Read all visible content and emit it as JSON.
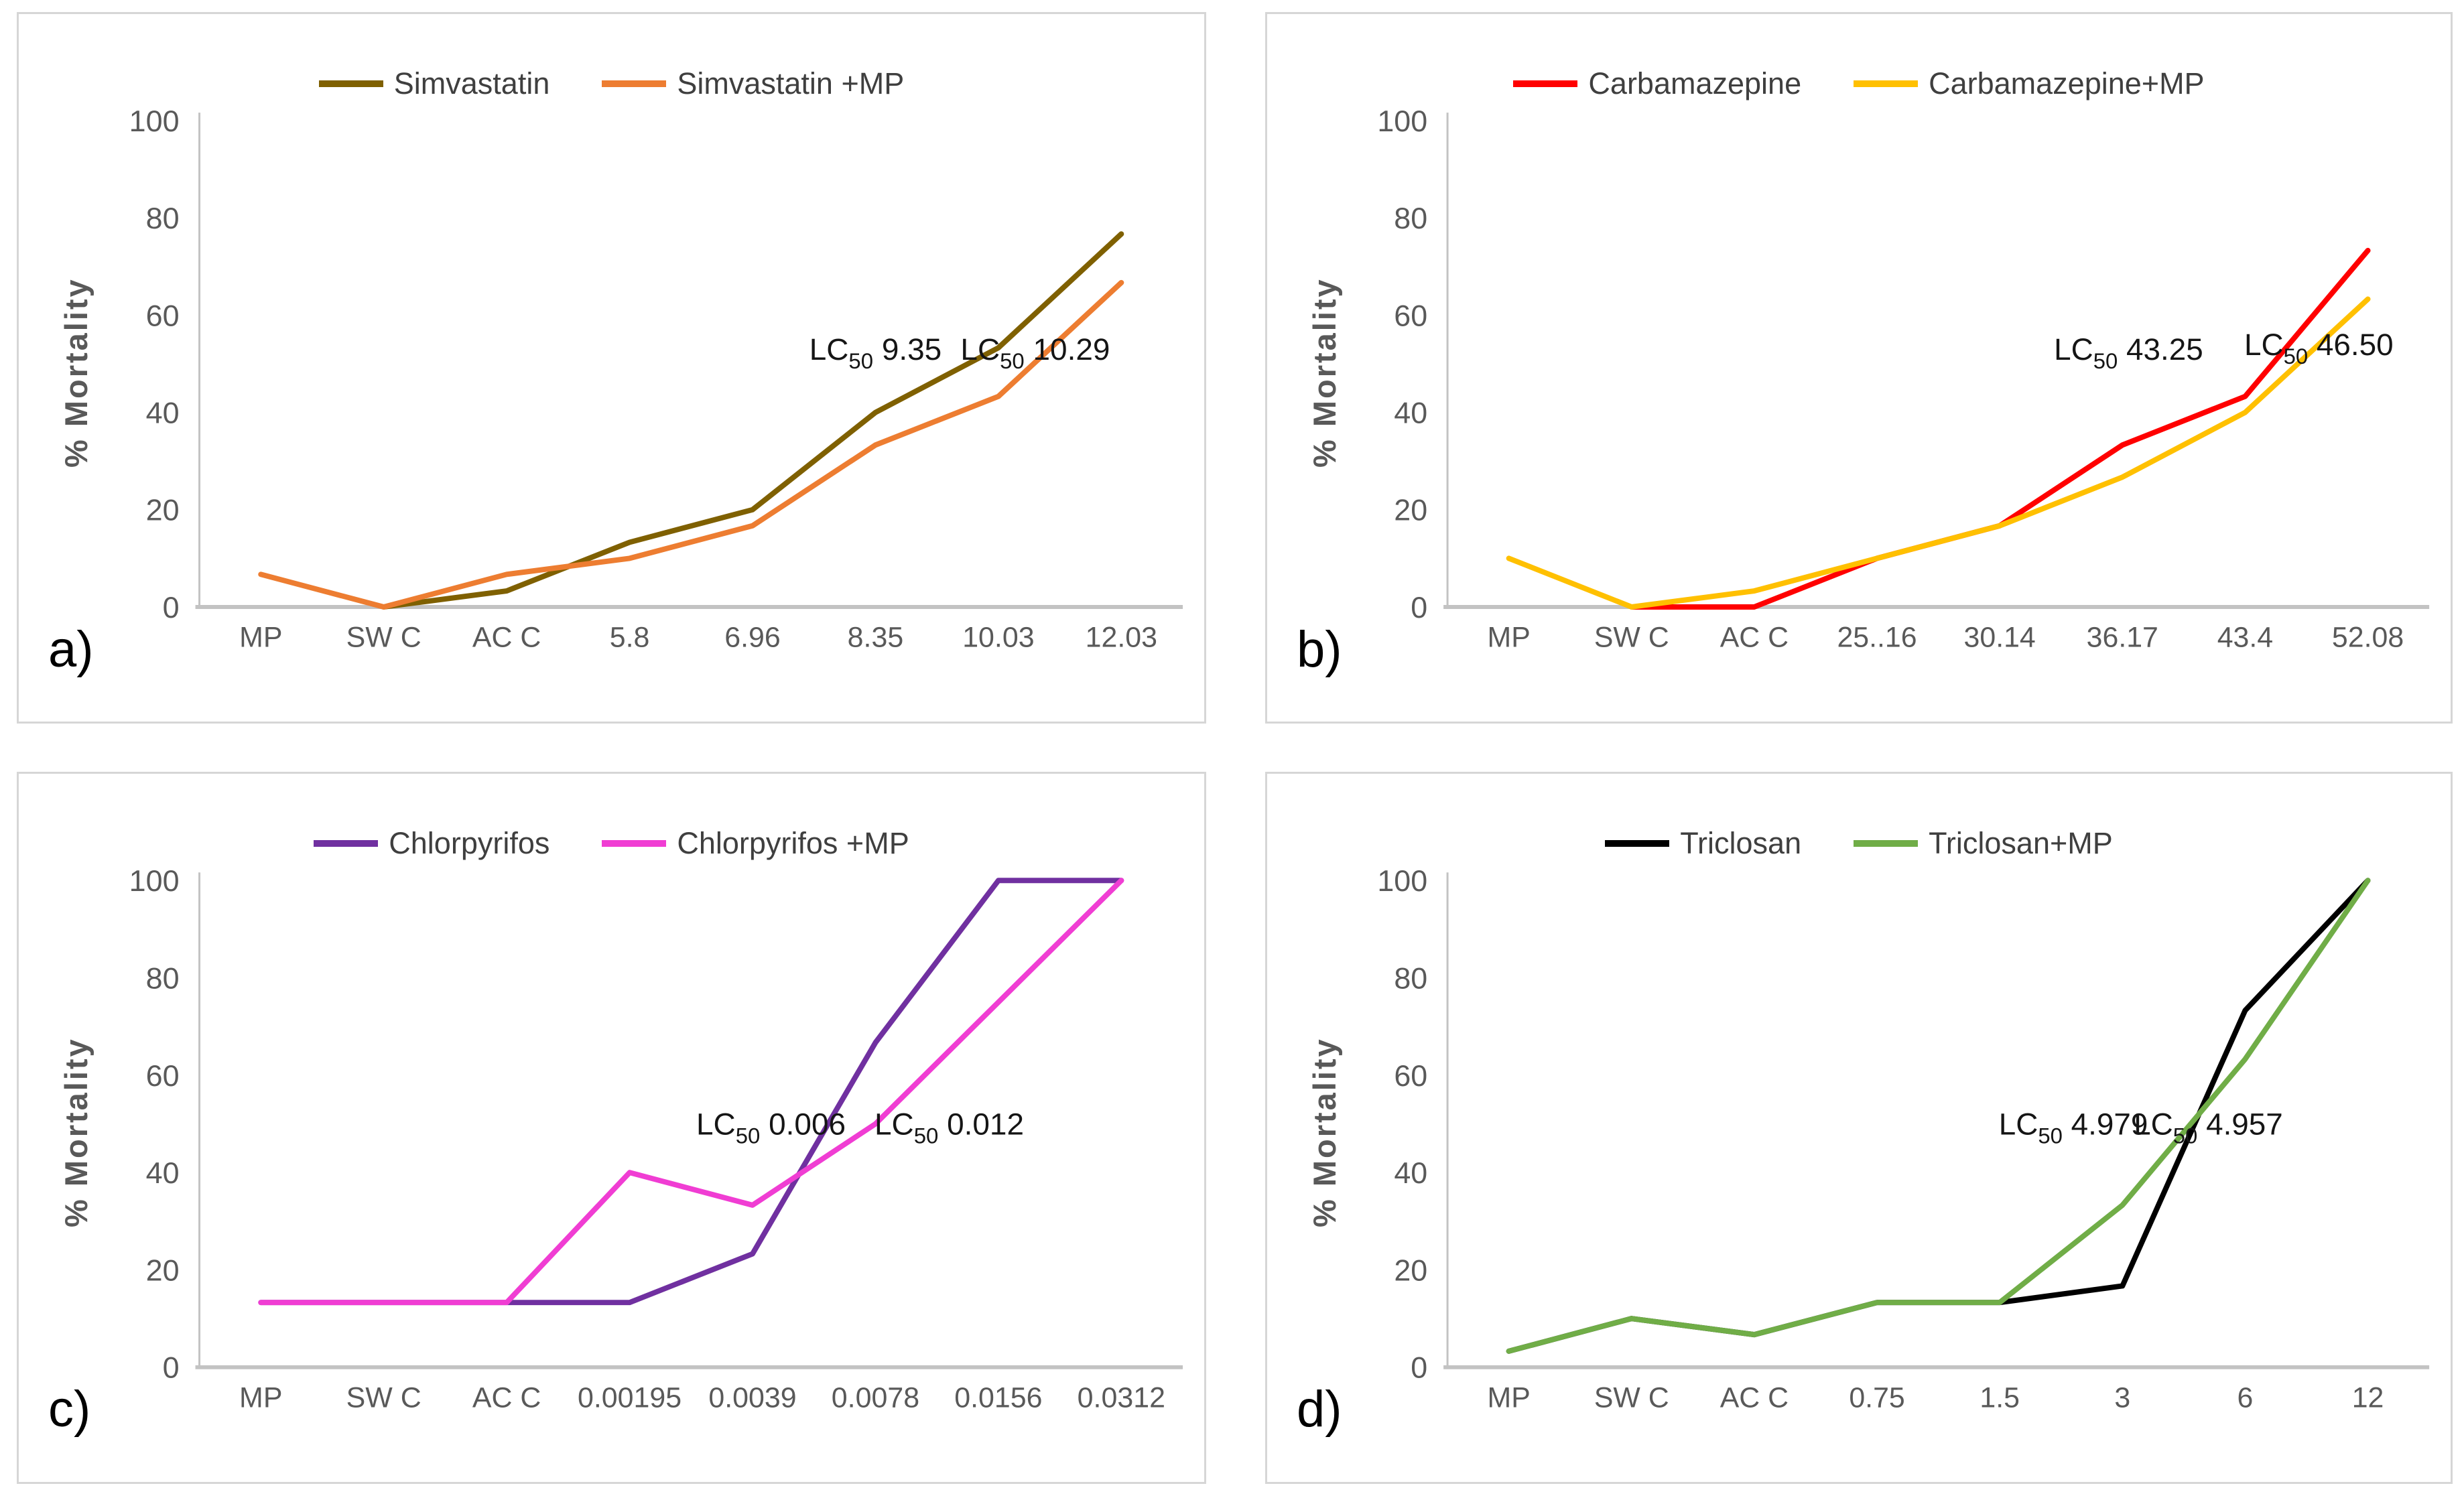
{
  "figure": {
    "ylabel": "% Mortality",
    "axis_color": "#C3C3C3",
    "tick_color": "#595959"
  },
  "chart_data": [
    {
      "id": "a",
      "letter": "a)",
      "type": "line",
      "title": "",
      "xlabel": "",
      "ylabel": "% Mortality",
      "ylim": [
        0,
        100
      ],
      "yticks": [
        0,
        20,
        40,
        60,
        80,
        100
      ],
      "grid": false,
      "legend_position": "top",
      "categories": [
        "MP",
        "SW C",
        "AC C",
        "5.8",
        "6.96",
        "8.35",
        "10.03",
        "12.03"
      ],
      "series": [
        {
          "name": "Simvastatin",
          "color": "#7F6000",
          "values": [
            null,
            0,
            3.3,
            13.3,
            20,
            40,
            53.3,
            76.7
          ]
        },
        {
          "name": "Simvastatin +MP",
          "color": "#ED7D31",
          "values": [
            6.7,
            0,
            6.7,
            10,
            16.7,
            33.3,
            43.3,
            66.7
          ]
        }
      ],
      "annotations": [
        {
          "prefix": "LC",
          "sub": "50",
          "value": "9.35",
          "xi": 5.0,
          "y": 53
        },
        {
          "prefix": "LC",
          "sub": "50",
          "value": "10.29",
          "xi": 6.3,
          "y": 53
        }
      ]
    },
    {
      "id": "b",
      "letter": "b)",
      "type": "line",
      "title": "",
      "xlabel": "",
      "ylabel": "% Mortality",
      "ylim": [
        0,
        100
      ],
      "yticks": [
        0,
        20,
        40,
        60,
        80,
        100
      ],
      "grid": false,
      "legend_position": "top",
      "categories": [
        "MP",
        "SW C",
        "AC C",
        "25..16",
        "30.14",
        "36.17",
        "43.4",
        "52.08"
      ],
      "series": [
        {
          "name": "Carbamazepine",
          "color": "#FF0000",
          "values": [
            null,
            0,
            0,
            10,
            16.7,
            33.3,
            43.3,
            73.3
          ]
        },
        {
          "name": "Carbamazepine+MP",
          "color": "#FFC000",
          "values": [
            10,
            0,
            3.3,
            10,
            16.7,
            26.7,
            40,
            63.3
          ]
        }
      ],
      "annotations": [
        {
          "prefix": "LC",
          "sub": "50",
          "value": "43.25",
          "xi": 5.05,
          "y": 53
        },
        {
          "prefix": "LC",
          "sub": "50",
          "value": "46.50",
          "xi": 6.6,
          "y": 54
        }
      ]
    },
    {
      "id": "c",
      "letter": "c)",
      "type": "line",
      "title": "",
      "xlabel": "",
      "ylabel": "% Mortality",
      "ylim": [
        0,
        100
      ],
      "yticks": [
        0,
        20,
        40,
        60,
        80,
        100
      ],
      "grid": false,
      "legend_position": "top",
      "categories": [
        "MP",
        "SW C",
        "AC C",
        "0.00195",
        "0.0039",
        "0.0078",
        "0.0156",
        "0.0312"
      ],
      "series": [
        {
          "name": "Chlorpyrifos",
          "color": "#7030A0",
          "values": [
            13.3,
            13.3,
            13.3,
            13.3,
            23.3,
            66.7,
            100,
            100
          ]
        },
        {
          "name": "Chlorpyrifos +MP",
          "color": "#F03DD3",
          "values": [
            13.3,
            13.3,
            13.3,
            40,
            33.3,
            50,
            75,
            100
          ]
        }
      ],
      "annotations": [
        {
          "prefix": "LC",
          "sub": "50",
          "value": "0.006",
          "xi": 4.15,
          "y": 50
        },
        {
          "prefix": "LC",
          "sub": "50",
          "value": "0.012",
          "xi": 5.6,
          "y": 50
        }
      ]
    },
    {
      "id": "d",
      "letter": "d)",
      "type": "line",
      "title": "",
      "xlabel": "",
      "ylabel": "% Mortality",
      "ylim": [
        0,
        100
      ],
      "yticks": [
        0,
        20,
        40,
        60,
        80,
        100
      ],
      "grid": false,
      "legend_position": "top",
      "categories": [
        "MP",
        "SW C",
        "AC C",
        "0.75",
        "1.5",
        "3",
        "6",
        "12"
      ],
      "series": [
        {
          "name": "Triclosan",
          "color": "#000000",
          "values": [
            3.3,
            10,
            6.7,
            13.3,
            13.3,
            16.7,
            73.3,
            100
          ]
        },
        {
          "name": "Triclosan+MP",
          "color": "#70AD47",
          "values": [
            3.3,
            10,
            6.7,
            13.3,
            13.3,
            33.3,
            63.3,
            100
          ]
        }
      ],
      "annotations": [
        {
          "prefix": "LC",
          "sub": "50",
          "value": "4.979",
          "xi": 4.6,
          "y": 50
        },
        {
          "prefix": "LC",
          "sub": "50",
          "value": "4.957",
          "xi": 5.7,
          "y": 50
        }
      ]
    }
  ]
}
